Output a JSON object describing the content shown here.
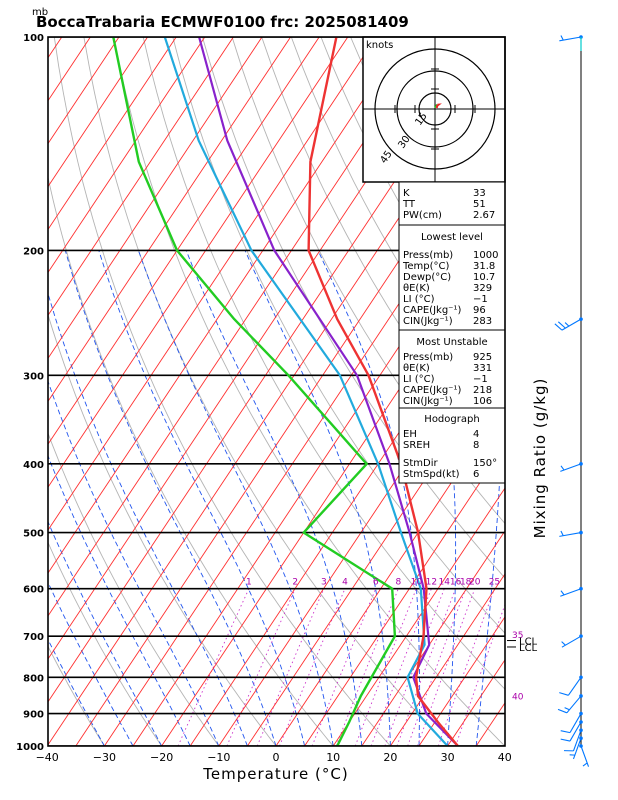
{
  "chart_data": {
    "type": "skew-t log-p sounding",
    "title": "BoccaTrabaria ECMWF0100  frc: 2025081409",
    "pressure_unit": "mb",
    "xlabel": "Temperature  (°C)",
    "ylabel_right": "Mixing Ratio  (g/kg)",
    "x_ticks": [
      -40,
      -30,
      -20,
      -10,
      0,
      10,
      20,
      30,
      40
    ],
    "x_tick_labels": [
      "−40",
      "−30",
      "−20",
      "−10",
      "0",
      "10",
      "20",
      "30",
      "40"
    ],
    "y_ticks": [
      100,
      200,
      300,
      400,
      500,
      600,
      700,
      800,
      900,
      1000
    ],
    "xlim": [
      -40,
      40
    ],
    "ylim": [
      1000,
      100
    ],
    "mixing_ratio_labels": [
      "1",
      "2",
      "3",
      "4",
      "6",
      "8",
      "10",
      "12",
      "14",
      "16",
      "18",
      "20",
      "25",
      "30"
    ],
    "right_side_labels": [
      "35",
      "40"
    ],
    "lcl_label": "LCL",
    "hodograph": {
      "label": "knots",
      "rings": [
        "15",
        "30",
        "45"
      ]
    },
    "indices": {
      "top": [
        [
          "K",
          "33"
        ],
        [
          "TT",
          "51"
        ],
        [
          "PW(cm)",
          "2.67"
        ]
      ],
      "lowest_title": "Lowest level",
      "lowest": [
        [
          "Press(mb)",
          "1000"
        ],
        [
          "Temp(°C)",
          "31.8"
        ],
        [
          "Dewp(°C)",
          "10.7"
        ],
        [
          "θE(K)",
          "329"
        ],
        [
          "LI (°C)",
          "−1"
        ],
        [
          "CAPE(Jkg⁻¹)",
          "96"
        ],
        [
          "CIN(Jkg⁻¹)",
          "283"
        ]
      ],
      "unstable_title": "Most Unstable",
      "unstable": [
        [
          "Press(mb)",
          "925"
        ],
        [
          "θE(K)",
          "331"
        ],
        [
          "LI (°C)",
          "−1"
        ],
        [
          "CAPE(Jkg⁻¹)",
          "218"
        ],
        [
          "CIN(Jkg⁻¹)",
          "106"
        ]
      ],
      "hodo_title": "Hodograph",
      "hodo": [
        [
          "EH",
          "4"
        ],
        [
          "SREH",
          "8"
        ]
      ],
      "storm": [
        [
          "StmDir",
          "150°"
        ],
        [
          "StmSpd(kt)",
          "6"
        ]
      ]
    },
    "temperature_profile": [
      [
        1000,
        31.8
      ],
      [
        925,
        25.5
      ],
      [
        850,
        19.0
      ],
      [
        800,
        16.5
      ],
      [
        700,
        13.0
      ],
      [
        600,
        8.0
      ],
      [
        500,
        0.0
      ],
      [
        400,
        -11.0
      ],
      [
        300,
        -27.0
      ],
      [
        250,
        -39.0
      ],
      [
        200,
        -52.0
      ],
      [
        150,
        -62.0
      ],
      [
        100,
        -72.0
      ]
    ],
    "dewpoint_profile": [
      [
        1000,
        10.7
      ],
      [
        925,
        10.0
      ],
      [
        850,
        9.0
      ],
      [
        700,
        8.0
      ],
      [
        600,
        2.0
      ],
      [
        500,
        -20.0
      ],
      [
        400,
        -17.0
      ],
      [
        300,
        -41.0
      ],
      [
        250,
        -57.0
      ],
      [
        200,
        -75.0
      ],
      [
        150,
        -92.0
      ],
      [
        100,
        -111.0
      ]
    ],
    "parcel_profile": [
      [
        1000,
        31.8
      ],
      [
        900,
        22.5
      ],
      [
        800,
        16.0
      ],
      [
        720,
        15.0
      ],
      [
        600,
        7.5
      ],
      [
        500,
        -1.5
      ],
      [
        400,
        -13.0
      ],
      [
        300,
        -29.0
      ],
      [
        200,
        -58.0
      ],
      [
        140,
        -79.0
      ],
      [
        100,
        -96.0
      ]
    ],
    "mu_parcel_profile": [
      [
        1000,
        30.0
      ],
      [
        900,
        21.0
      ],
      [
        800,
        15.0
      ],
      [
        720,
        14.2
      ],
      [
        600,
        7.0
      ],
      [
        500,
        -3.0
      ],
      [
        400,
        -15.0
      ],
      [
        300,
        -32.0
      ],
      [
        200,
        -62.0
      ],
      [
        140,
        -84.0
      ],
      [
        100,
        -102.0
      ]
    ],
    "wind_profile": [
      {
        "p": 1000,
        "dir": 160,
        "kt": 4
      },
      {
        "p": 975,
        "dir": 200,
        "kt": 7
      },
      {
        "p": 950,
        "dir": 200,
        "kt": 9
      },
      {
        "p": 925,
        "dir": 210,
        "kt": 12
      },
      {
        "p": 900,
        "dir": 210,
        "kt": 12
      },
      {
        "p": 850,
        "dir": 220,
        "kt": 14
      },
      {
        "p": 800,
        "dir": 215,
        "kt": 10
      },
      {
        "p": 700,
        "dir": 240,
        "kt": 5
      },
      {
        "p": 600,
        "dir": 250,
        "kt": 5
      },
      {
        "p": 500,
        "dir": 260,
        "kt": 5
      },
      {
        "p": 400,
        "dir": 250,
        "kt": 5
      },
      {
        "p": 250,
        "dir": 240,
        "kt": 25
      },
      {
        "p": 100,
        "dir": 260,
        "kt": 5
      }
    ]
  }
}
